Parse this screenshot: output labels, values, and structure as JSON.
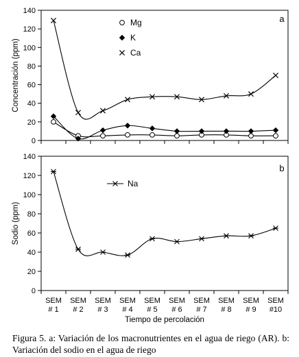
{
  "chart_data": [
    {
      "type": "line",
      "panel_label": "a",
      "title": "",
      "xlabel": "",
      "ylabel": "Concentración (ppm)",
      "ylim": [
        0,
        140
      ],
      "yticks": [
        0,
        20,
        40,
        60,
        80,
        100,
        120,
        140
      ],
      "categories": [
        "SEM # 1",
        "SEM # 2",
        "SEM # 3",
        "SEM # 4",
        "SEM # 5",
        "SEM # 6",
        "SEM # 7",
        "SEM # 8",
        "SEM # 9",
        "SEM # 10"
      ],
      "grid": false,
      "legend_position": "top-center",
      "series": [
        {
          "name": "Mg",
          "marker": "open-circle",
          "values": [
            20,
            5,
            5,
            6,
            6,
            5,
            6,
            6,
            5,
            5
          ]
        },
        {
          "name": "K",
          "marker": "filled-diamond",
          "values": [
            26,
            2,
            11,
            16,
            13,
            10,
            10,
            10,
            10,
            11
          ]
        },
        {
          "name": "Ca",
          "marker": "x",
          "values": [
            129,
            30,
            32,
            44,
            47,
            47,
            44,
            48,
            50,
            70
          ]
        }
      ]
    },
    {
      "type": "line",
      "panel_label": "b",
      "title": "",
      "xlabel": "Tiempo de percolación",
      "ylabel": "Sodio (ppm)",
      "ylim": [
        0,
        140
      ],
      "yticks": [
        0,
        20,
        40,
        60,
        80,
        100,
        120,
        140
      ],
      "categories": [
        "SEM # 1",
        "SEM # 2",
        "SEM # 3",
        "SEM # 4",
        "SEM # 5",
        "SEM # 6",
        "SEM # 7",
        "SEM # 8",
        "SEM # 9",
        "SEM # 10"
      ],
      "category_lines": [
        [
          "SEM",
          "# 1"
        ],
        [
          "SEM",
          "# 2"
        ],
        [
          "SEM",
          "# 3"
        ],
        [
          "SEM",
          "# 4"
        ],
        [
          "SEM",
          "# 5"
        ],
        [
          "SEM",
          "# 6"
        ],
        [
          "SEM",
          "# 7"
        ],
        [
          "SEM",
          "# 8"
        ],
        [
          "SEM",
          "# 9"
        ],
        [
          "SEM",
          "#10"
        ]
      ],
      "grid": false,
      "legend_position": "top-left",
      "series": [
        {
          "name": "Na",
          "marker": "asterisk",
          "values": [
            124,
            43,
            40,
            37,
            54,
            51,
            54,
            57,
            57,
            65
          ]
        }
      ]
    }
  ],
  "caption": "Figura 5. a: Variación de los macronutrientes en el agua de riego (AR). b: Variación del sodio en el agua de riego"
}
